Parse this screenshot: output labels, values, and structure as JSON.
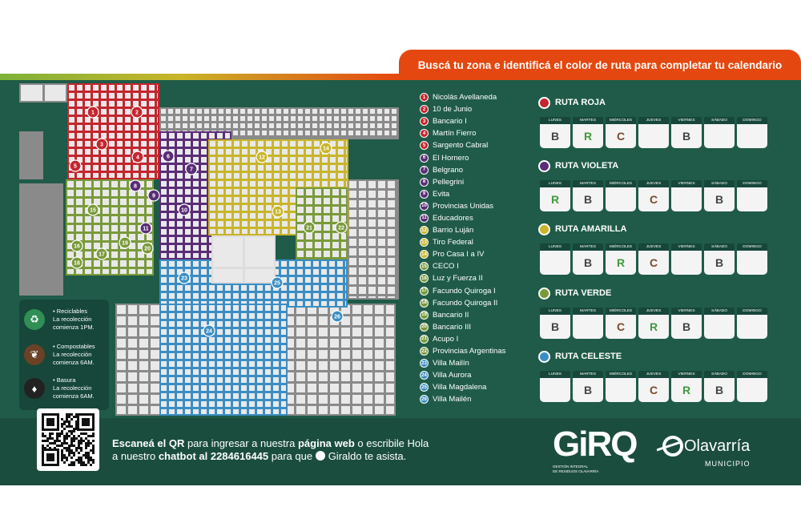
{
  "header": {
    "title": "Buscá tu zona e identificá el color de ruta para completar tu calendario"
  },
  "colors": {
    "roja": "#c4262e",
    "violeta": "#5b2d77",
    "amarilla": "#c9b52a",
    "verde": "#7a9a3a",
    "celeste": "#3b8ec4",
    "accent": "#e4470f"
  },
  "legend": [
    {
      "icon": "recycle-icon",
      "text": "• Reciclables\nLa recolección\ncomienza 1PM.",
      "color": "#2f8f55"
    },
    {
      "icon": "leaf-icon",
      "text": "• Compostables\nLa recolección\ncomienza 6AM.",
      "color": "#6b4226"
    },
    {
      "icon": "trash-bag-icon",
      "text": "• Basura\nLa recolección\ncomienza 6AM.",
      "color": "#222222"
    }
  ],
  "zones": [
    {
      "num": "1",
      "name": "Nicolás Avellaneda",
      "route": "roja"
    },
    {
      "num": "2",
      "name": "10 de Junio",
      "route": "roja"
    },
    {
      "num": "3",
      "name": "Bancario I",
      "route": "roja"
    },
    {
      "num": "4",
      "name": "Martín Fierro",
      "route": "roja"
    },
    {
      "num": "5",
      "name": "Sargento Cabral",
      "route": "roja"
    },
    {
      "num": "6",
      "name": "El Hornero",
      "route": "violeta"
    },
    {
      "num": "7",
      "name": "Belgrano",
      "route": "violeta"
    },
    {
      "num": "8",
      "name": "Pellegrini",
      "route": "violeta"
    },
    {
      "num": "9",
      "name": "Evita",
      "route": "violeta"
    },
    {
      "num": "10",
      "name": "Provincias Unidas",
      "route": "violeta"
    },
    {
      "num": "11",
      "name": "Educadores",
      "route": "violeta"
    },
    {
      "num": "12",
      "name": "Barrio Luján",
      "route": "amarilla"
    },
    {
      "num": "13",
      "name": "Tiro Federal",
      "route": "amarilla"
    },
    {
      "num": "14",
      "name": "Pro Casa I a IV",
      "route": "amarilla"
    },
    {
      "num": "15",
      "name": "CECO I",
      "route": "verde"
    },
    {
      "num": "16",
      "name": "Luz y Fuerza II",
      "route": "verde"
    },
    {
      "num": "17",
      "name": "Facundo Quiroga I",
      "route": "verde"
    },
    {
      "num": "18",
      "name": "Facundo Quiroga II",
      "route": "verde"
    },
    {
      "num": "19",
      "name": "Bancario II",
      "route": "verde"
    },
    {
      "num": "20",
      "name": "Bancario III",
      "route": "verde"
    },
    {
      "num": "21",
      "name": "Acupo I",
      "route": "verde"
    },
    {
      "num": "22",
      "name": "Provincias Argentinas",
      "route": "verde"
    },
    {
      "num": "23",
      "name": "Villa Mailín",
      "route": "celeste"
    },
    {
      "num": "24",
      "name": "Villa Aurora",
      "route": "celeste"
    },
    {
      "num": "25",
      "name": "Villa Magdalena",
      "route": "celeste"
    },
    {
      "num": "26",
      "name": "Villa Mailén",
      "route": "celeste"
    }
  ],
  "day_labels": [
    "LUNES",
    "MARTES",
    "MIÉRCOLES",
    "JUEVES",
    "VIERNES",
    "SÁBADO",
    "DOMINGO"
  ],
  "routes": [
    {
      "name": "RUTA ROJA",
      "key": "roja",
      "days": [
        "B",
        "R",
        "C",
        "",
        "B",
        "",
        ""
      ]
    },
    {
      "name": "RUTA VIOLETA",
      "key": "violeta",
      "days": [
        "R",
        "B",
        "",
        "C",
        "",
        "B",
        ""
      ]
    },
    {
      "name": "RUTA AMARILLA",
      "key": "amarilla",
      "days": [
        "",
        "B",
        "R",
        "C",
        "",
        "B",
        ""
      ]
    },
    {
      "name": "RUTA VERDE",
      "key": "verde",
      "days": [
        "B",
        "",
        "C",
        "R",
        "B",
        "",
        ""
      ]
    },
    {
      "name": "RUTA CELESTE",
      "key": "celeste",
      "days": [
        "",
        "B",
        "",
        "C",
        "R",
        "B",
        ""
      ]
    }
  ],
  "footer": {
    "line1_a": "Escaneá el QR",
    "line1_b": " para ingresar a nuestra ",
    "line1_c": "página web",
    "line1_d": " o escribile Hola",
    "line2_a": "a nuestro ",
    "line2_b": "chatbot al 2284616445",
    "line2_c": " para que ",
    "line2_d": "Giraldo te asista."
  },
  "brand": {
    "giro": "GiRQ",
    "giro_sub": "GESTIÓN INTEGRAL\nDE RESIDUOS OLAVARRÍA",
    "olavarria": "Olavarría",
    "municipio": "MUNICIPIO"
  }
}
